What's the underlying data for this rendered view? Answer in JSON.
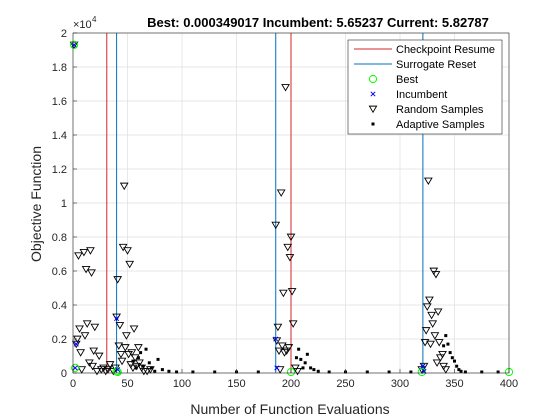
{
  "chart_data": {
    "type": "scatter",
    "title": "Best: 0.000349017 Incumbent: 5.65237 Current: 5.82787",
    "xlabel": "Number of Function Evaluations",
    "ylabel": "Objective Function",
    "y_exponent_label": "×10",
    "y_exponent_power": "4",
    "xlim": [
      0,
      400
    ],
    "ylim": [
      0,
      20000
    ],
    "xticks": [
      "0",
      "50",
      "100",
      "150",
      "200",
      "250",
      "300",
      "350",
      "400"
    ],
    "yticks": [
      "0",
      "0.2",
      "0.4",
      "0.6",
      "0.8",
      "1",
      "1.2",
      "1.4",
      "1.6",
      "1.8",
      "2"
    ],
    "xtick_values": [
      0,
      50,
      100,
      150,
      200,
      250,
      300,
      350,
      400
    ],
    "ytick_values": [
      0,
      2000,
      4000,
      6000,
      8000,
      10000,
      12000,
      14000,
      16000,
      18000,
      20000
    ],
    "grid": true,
    "legend_position": "top-right",
    "colors": {
      "checkpoint": "#d62728",
      "surrogate": "#0072bd",
      "best": "#00ff00",
      "incumbent": "#0000ff",
      "random": "#000000",
      "adaptive": "#000000",
      "grid": "#dfdfdf",
      "axis": "#262626"
    },
    "legend": [
      {
        "label": "Checkpoint Resume",
        "marker": "line",
        "key": "checkpoint"
      },
      {
        "label": "Surrogate Reset",
        "marker": "line",
        "key": "surrogate"
      },
      {
        "label": "Best",
        "marker": "circle",
        "key": "best"
      },
      {
        "label": "Incumbent",
        "marker": "x",
        "key": "incumbent"
      },
      {
        "label": "Random Samples",
        "marker": "triangle-down",
        "key": "random"
      },
      {
        "label": "Adaptive Samples",
        "marker": "dot",
        "key": "adaptive"
      }
    ],
    "checkpoint_resume_x": [
      31,
      200
    ],
    "surrogate_reset_x": [
      40,
      186,
      321
    ],
    "series": [
      {
        "name": "Random Samples",
        "points": [
          [
            1,
            19300
          ],
          [
            3,
            1700
          ],
          [
            4,
            2000
          ],
          [
            5,
            6900
          ],
          [
            6,
            2600
          ],
          [
            7,
            1200
          ],
          [
            8,
            200
          ],
          [
            10,
            7100
          ],
          [
            11,
            2200
          ],
          [
            12,
            6100
          ],
          [
            13,
            2900
          ],
          [
            15,
            600
          ],
          [
            16,
            7200
          ],
          [
            17,
            5900
          ],
          [
            18,
            400
          ],
          [
            19,
            1300
          ],
          [
            20,
            2700
          ],
          [
            22,
            100
          ],
          [
            24,
            1000
          ],
          [
            26,
            200
          ],
          [
            28,
            300
          ],
          [
            30,
            100
          ],
          [
            32,
            200
          ],
          [
            34,
            500
          ],
          [
            37,
            100
          ],
          [
            39,
            300
          ],
          [
            40,
            3300
          ],
          [
            41,
            5500
          ],
          [
            42,
            1600
          ],
          [
            43,
            2800
          ],
          [
            44,
            1100
          ],
          [
            45,
            700
          ],
          [
            46,
            7400
          ],
          [
            47,
            11000
          ],
          [
            48,
            1500
          ],
          [
            49,
            2200
          ],
          [
            50,
            7200
          ],
          [
            51,
            1100
          ],
          [
            52,
            6400
          ],
          [
            53,
            500
          ],
          [
            54,
            1200
          ],
          [
            55,
            300
          ],
          [
            56,
            2600
          ],
          [
            57,
            900
          ],
          [
            58,
            400
          ],
          [
            60,
            1500
          ],
          [
            61,
            600
          ],
          [
            63,
            300
          ],
          [
            65,
            100
          ],
          [
            68,
            100
          ],
          [
            71,
            200
          ],
          [
            186,
            8700
          ],
          [
            187,
            1900
          ],
          [
            188,
            2700
          ],
          [
            189,
            1300
          ],
          [
            190,
            200
          ],
          [
            191,
            10600
          ],
          [
            192,
            1600
          ],
          [
            193,
            4700
          ],
          [
            194,
            1200
          ],
          [
            195,
            16800
          ],
          [
            196,
            1300
          ],
          [
            197,
            7400
          ],
          [
            198,
            1500
          ],
          [
            199,
            6800
          ],
          [
            200,
            8000
          ],
          [
            201,
            4800
          ],
          [
            202,
            2900
          ],
          [
            204,
            300
          ],
          [
            206,
            100
          ],
          [
            320,
            200
          ],
          [
            322,
            400
          ],
          [
            323,
            1800
          ],
          [
            324,
            2500
          ],
          [
            325,
            3900
          ],
          [
            326,
            11300
          ],
          [
            327,
            4300
          ],
          [
            328,
            1700
          ],
          [
            329,
            3400
          ],
          [
            330,
            2900
          ],
          [
            331,
            6000
          ],
          [
            332,
            2200
          ],
          [
            333,
            5800
          ],
          [
            334,
            600
          ],
          [
            335,
            3600
          ],
          [
            336,
            1800
          ],
          [
            337,
            900
          ],
          [
            339,
            1100
          ],
          [
            340,
            400
          ],
          [
            342,
            200
          ]
        ]
      },
      {
        "name": "Adaptive Samples",
        "points": [
          [
            55,
            700
          ],
          [
            58,
            300
          ],
          [
            60,
            900
          ],
          [
            62,
            1200
          ],
          [
            64,
            400
          ],
          [
            67,
            1400
          ],
          [
            70,
            600
          ],
          [
            72,
            300
          ],
          [
            75,
            100
          ],
          [
            78,
            800
          ],
          [
            82,
            200
          ],
          [
            88,
            100
          ],
          [
            95,
            50
          ],
          [
            110,
            50
          ],
          [
            130,
            50
          ],
          [
            150,
            50
          ],
          [
            170,
            50
          ],
          [
            205,
            900
          ],
          [
            207,
            1400
          ],
          [
            209,
            800
          ],
          [
            211,
            300
          ],
          [
            213,
            600
          ],
          [
            215,
            1100
          ],
          [
            218,
            300
          ],
          [
            221,
            200
          ],
          [
            225,
            100
          ],
          [
            235,
            50
          ],
          [
            250,
            50
          ],
          [
            270,
            50
          ],
          [
            290,
            50
          ],
          [
            310,
            50
          ],
          [
            340,
            1600
          ],
          [
            342,
            2200
          ],
          [
            344,
            1700
          ],
          [
            346,
            1200
          ],
          [
            348,
            900
          ],
          [
            350,
            700
          ],
          [
            352,
            400
          ],
          [
            354,
            200
          ],
          [
            356,
            100
          ],
          [
            360,
            50
          ],
          [
            375,
            50
          ],
          [
            390,
            50
          ]
        ]
      },
      {
        "name": "Best",
        "points": [
          [
            1,
            19300
          ],
          [
            2,
            300
          ],
          [
            40,
            100
          ],
          [
            41,
            20
          ],
          [
            200,
            20
          ],
          [
            320,
            20
          ],
          [
            400,
            10
          ]
        ]
      },
      {
        "name": "Incumbent",
        "points": [
          [
            1,
            19300
          ],
          [
            2,
            300
          ],
          [
            3,
            1700
          ],
          [
            40,
            3200
          ],
          [
            41,
            200
          ],
          [
            186,
            2000
          ],
          [
            187,
            300
          ],
          [
            321,
            400
          ],
          [
            322,
            100
          ]
        ]
      }
    ]
  }
}
